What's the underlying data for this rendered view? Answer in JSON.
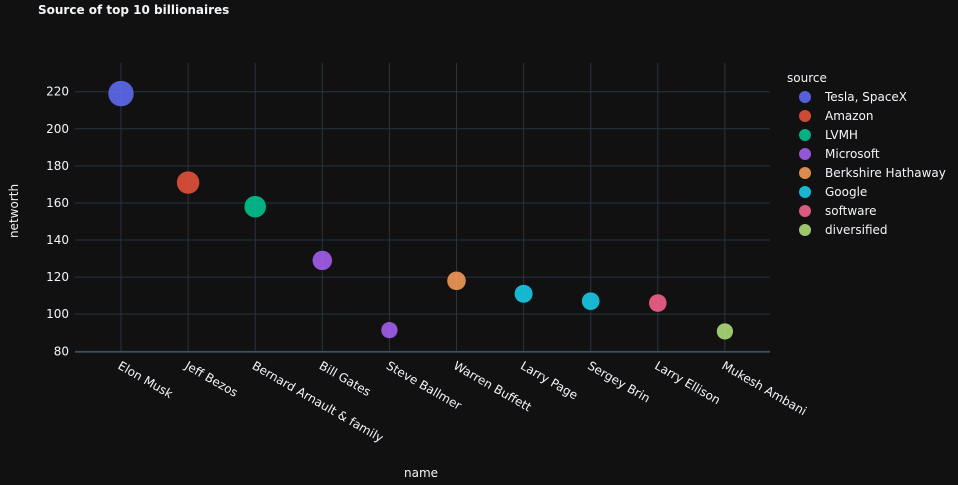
{
  "chart_data": {
    "type": "scatter",
    "title": "Source of top 10 billionaires",
    "x_label": "name",
    "y_label": "networth",
    "legend_title": "source",
    "categories": [
      "Elon Musk",
      "Jeff Bezos",
      "Bernard Arnault & family",
      "Bill Gates",
      "Steve Ballmer",
      "Warren Buffett",
      "Larry Page",
      "Sergey Brin",
      "Larry Ellison",
      "Mukesh Ambani"
    ],
    "series": [
      {
        "name": "Tesla, SpaceX",
        "color": "#636efa",
        "values": [
          219,
          null,
          null,
          null,
          null,
          null,
          null,
          null,
          null,
          null
        ]
      },
      {
        "name": "Amazon",
        "color": "#EF553B",
        "values": [
          null,
          171,
          null,
          null,
          null,
          null,
          null,
          null,
          null,
          null
        ]
      },
      {
        "name": "LVMH",
        "color": "#00cc96",
        "values": [
          null,
          null,
          158,
          null,
          null,
          null,
          null,
          null,
          null,
          null
        ]
      },
      {
        "name": "Microsoft",
        "color": "#ab63fa",
        "values": [
          null,
          null,
          null,
          129,
          91.4,
          null,
          null,
          null,
          null,
          null
        ]
      },
      {
        "name": "Berkshire Hathaway",
        "color": "#FFA15A",
        "values": [
          null,
          null,
          null,
          null,
          null,
          118,
          null,
          null,
          null,
          null
        ]
      },
      {
        "name": "Google",
        "color": "#19d3f3",
        "values": [
          null,
          null,
          null,
          null,
          null,
          null,
          111,
          107,
          null,
          null
        ]
      },
      {
        "name": "software",
        "color": "#FF6692",
        "values": [
          null,
          null,
          null,
          null,
          null,
          null,
          null,
          null,
          106,
          null
        ]
      },
      {
        "name": "diversified",
        "color": "#B6E880",
        "values": [
          null,
          null,
          null,
          null,
          null,
          null,
          null,
          null,
          null,
          90.7
        ]
      }
    ],
    "ylim": [
      79.6,
      235.5
    ],
    "yticks": [
      80,
      100,
      120,
      140,
      160,
      180,
      200,
      220
    ],
    "grid": true
  }
}
